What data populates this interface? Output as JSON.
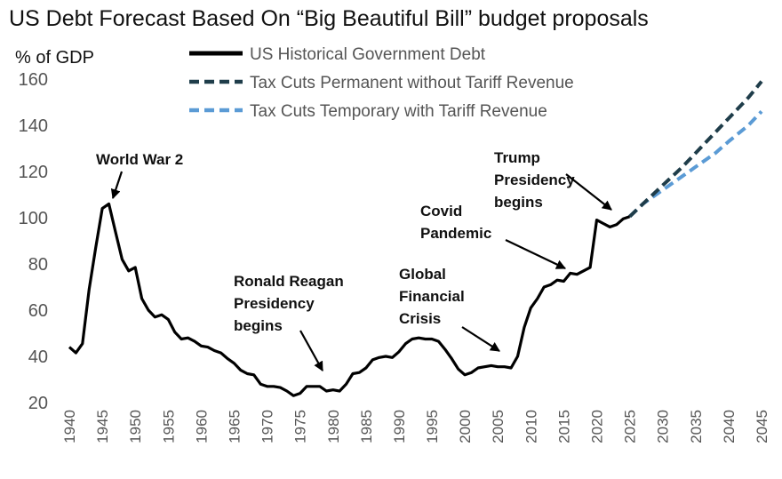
{
  "chart_data": {
    "type": "line",
    "title": "US Debt Forecast Based On “Big Beautiful Bill” budget proposals",
    "ylabel": "% of GDP",
    "xlabel": "",
    "ylim": [
      20,
      160
    ],
    "xlim": [
      1940,
      2045
    ],
    "grid": false,
    "legend_position": "top",
    "y_ticks": [
      20,
      40,
      60,
      80,
      100,
      120,
      140,
      160
    ],
    "x_ticks": [
      1940,
      1945,
      1950,
      1955,
      1960,
      1965,
      1970,
      1975,
      1980,
      1985,
      1990,
      1995,
      2000,
      2005,
      2010,
      2015,
      2020,
      2025,
      2030,
      2035,
      2040,
      2045
    ],
    "series": [
      {
        "name": "US Historical Government Debt",
        "color": "#000000",
        "dash": "solid",
        "x": [
          1940,
          1941,
          1942,
          1943,
          1944,
          1945,
          1946,
          1947,
          1948,
          1949,
          1950,
          1951,
          1952,
          1953,
          1954,
          1955,
          1956,
          1957,
          1958,
          1959,
          1960,
          1961,
          1962,
          1963,
          1964,
          1965,
          1966,
          1967,
          1968,
          1969,
          1970,
          1971,
          1972,
          1973,
          1974,
          1975,
          1976,
          1977,
          1978,
          1979,
          1980,
          1981,
          1982,
          1983,
          1984,
          1985,
          1986,
          1987,
          1988,
          1989,
          1990,
          1991,
          1992,
          1993,
          1994,
          1995,
          1996,
          1997,
          1998,
          1999,
          2000,
          2001,
          2002,
          2003,
          2004,
          2005,
          2006,
          2007,
          2008,
          2009,
          2010,
          2011,
          2012,
          2013,
          2014,
          2015,
          2016,
          2017,
          2018,
          2019,
          2020,
          2021,
          2022,
          2023,
          2024,
          2025
        ],
        "values": [
          44,
          41.5,
          45.5,
          69,
          87,
          104,
          106,
          94,
          82,
          77,
          78.5,
          65,
          60,
          57,
          58,
          56,
          50.5,
          47.5,
          48,
          46.5,
          44.5,
          44,
          42.5,
          41.5,
          39,
          37,
          34,
          32.5,
          32,
          28,
          27,
          27,
          26.5,
          25,
          23,
          24,
          27,
          27,
          27,
          25,
          25.5,
          25,
          28,
          32.5,
          33,
          35,
          38.5,
          39.5,
          40,
          39.5,
          42,
          45.5,
          47.5,
          48,
          47.5,
          47.5,
          46.5,
          43,
          39,
          34.5,
          32,
          33,
          35,
          35.5,
          36,
          35.5,
          35.5,
          35,
          40,
          52.5,
          61,
          65,
          70,
          71,
          73,
          72.5,
          76,
          75.5,
          77,
          78.5,
          99,
          97.5,
          96,
          97,
          99.5,
          100.5
        ]
      },
      {
        "name": "Tax Cuts Permanent without Tariff Revenue",
        "color": "#1f3d4a",
        "dash": "dashed",
        "x": [
          2025,
          2027,
          2030,
          2033,
          2035,
          2038,
          2040,
          2043,
          2045
        ],
        "values": [
          100.5,
          106,
          114,
          122,
          128,
          137,
          143,
          152,
          159
        ]
      },
      {
        "name": "Tax Cuts Temporary with Tariff Revenue",
        "color": "#5b9bd5",
        "dash": "dashed",
        "x": [
          2025,
          2027,
          2030,
          2033,
          2035,
          2038,
          2040,
          2043,
          2045
        ],
        "values": [
          100.5,
          106,
          112,
          118,
          122,
          128,
          133,
          140,
          146
        ]
      }
    ],
    "annotations": [
      {
        "lines": [
          "World War 2"
        ],
        "target": {
          "x": 1946,
          "y": 106
        }
      },
      {
        "lines": [
          "Ronald Reagan",
          "Presidency",
          "begins"
        ],
        "target": {
          "x": 1980,
          "y": 30
        }
      },
      {
        "lines": [
          "Global",
          "Financial",
          "Crisis"
        ],
        "target": {
          "x": 2008,
          "y": 36
        }
      },
      {
        "lines": [
          "Covid",
          "Pandemic"
        ],
        "target": {
          "x": 2020,
          "y": 77
        }
      },
      {
        "lines": [
          "Trump",
          "Presidency",
          "begins"
        ],
        "target": {
          "x": 2025,
          "y": 100
        }
      }
    ]
  }
}
